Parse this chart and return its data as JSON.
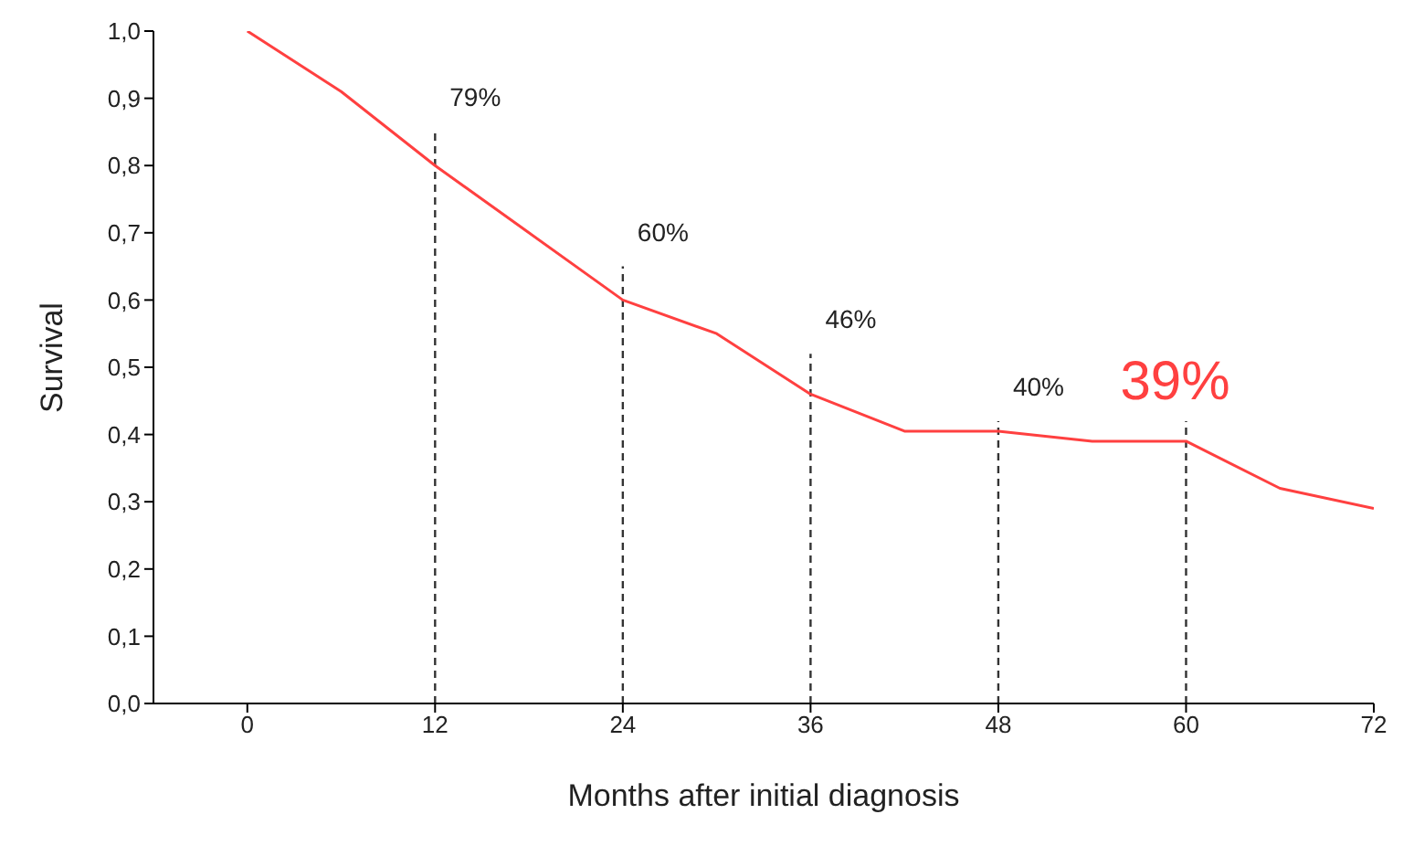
{
  "chart_data": {
    "type": "line",
    "xlabel": "Months after initial diagnosis",
    "ylabel": "Survival",
    "x": [
      0,
      6,
      12,
      18,
      24,
      30,
      36,
      42,
      48,
      54,
      60,
      66,
      72
    ],
    "series": [
      {
        "color": "#ff4040",
        "values": [
          1.0,
          0.91,
          0.8,
          0.7,
          0.6,
          0.55,
          0.46,
          0.405,
          0.405,
          0.39,
          0.39,
          0.32,
          0.29
        ]
      }
    ],
    "xlim": [
      -6,
      72
    ],
    "xticks": [
      0,
      12,
      24,
      36,
      48,
      60,
      72
    ],
    "ylim": [
      0,
      1
    ],
    "yticks": [
      {
        "value": 0,
        "label": "0,0"
      },
      {
        "value": 0.1,
        "label": "0,1"
      },
      {
        "value": 0.2,
        "label": "0,2"
      },
      {
        "value": 0.3,
        "label": "0,3"
      },
      {
        "value": 0.4,
        "label": "0,4"
      },
      {
        "value": 0.5,
        "label": "0,5"
      },
      {
        "value": 0.6,
        "label": "0,6"
      },
      {
        "value": 0.7,
        "label": "0,7"
      },
      {
        "value": 0.8,
        "label": "0,8"
      },
      {
        "value": 0.9,
        "label": "0,9"
      },
      {
        "value": 1,
        "label": "1,0"
      }
    ],
    "ref_lines": [
      {
        "axis": "x",
        "value": 12,
        "line_style": "dashed"
      },
      {
        "axis": "x",
        "value": 24,
        "line_style": "dashed"
      },
      {
        "axis": "x",
        "value": 36,
        "line_style": "dashed"
      },
      {
        "axis": "x",
        "value": 48,
        "line_style": "dashed"
      },
      {
        "axis": "x",
        "value": 60,
        "line_style": "dashed"
      }
    ],
    "annotations": [
      {
        "text": "79%",
        "x": 12,
        "y": 0.85
      },
      {
        "text": "60%",
        "x": 24,
        "y": 0.65
      },
      {
        "text": "46%",
        "x": 36,
        "y": 0.52
      },
      {
        "text": "40%",
        "x": 48,
        "y": 0.42
      },
      {
        "text": "39%",
        "x": 60,
        "y": 0.42
      }
    ],
    "grid": false,
    "legend": false,
    "marker": "none",
    "line_style": "solid"
  }
}
